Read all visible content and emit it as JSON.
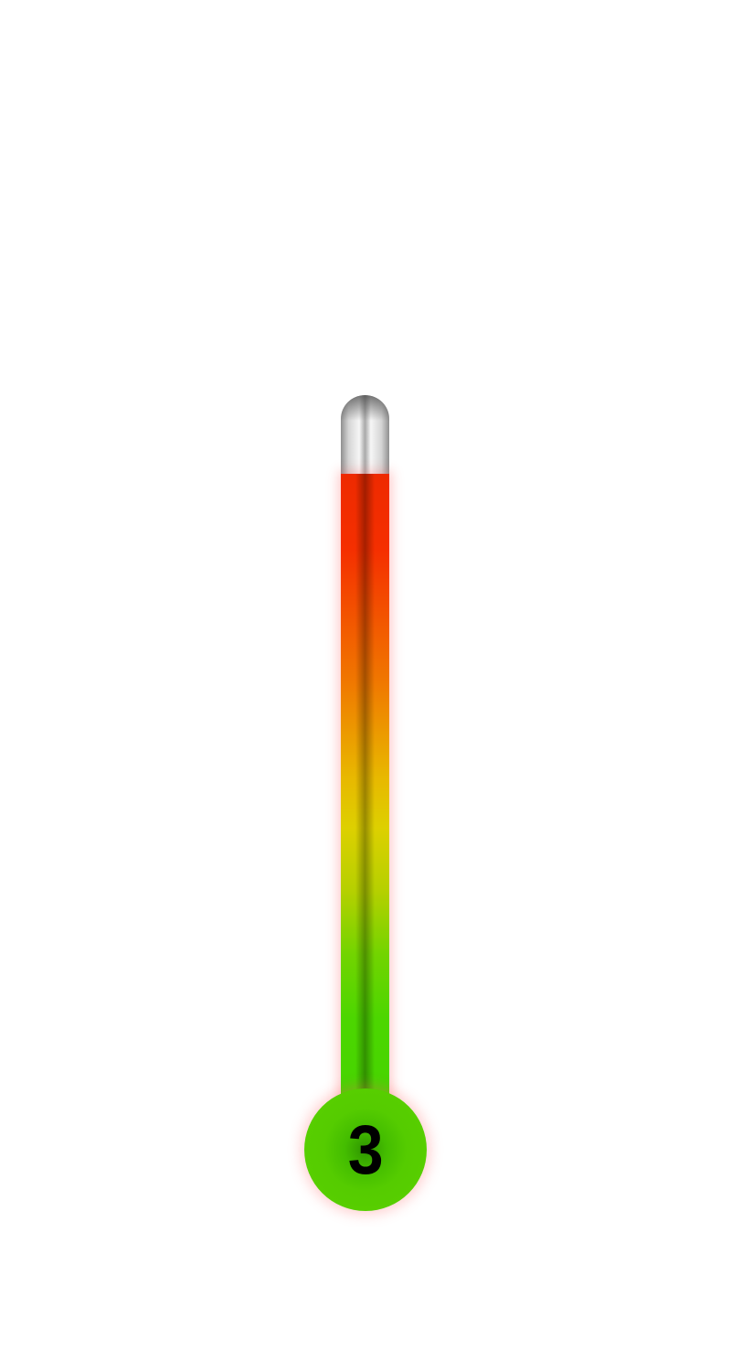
{
  "thermometer": {
    "level": "3",
    "fill_fraction": 0.89,
    "colors": {
      "tube_glass": "#d4d4d4",
      "fill_top": "#ee2a00",
      "fill_middle": "#ddd000",
      "fill_bottom": "#45d400",
      "bulb": "#55cc00",
      "glow": "#ff5a5a"
    }
  }
}
